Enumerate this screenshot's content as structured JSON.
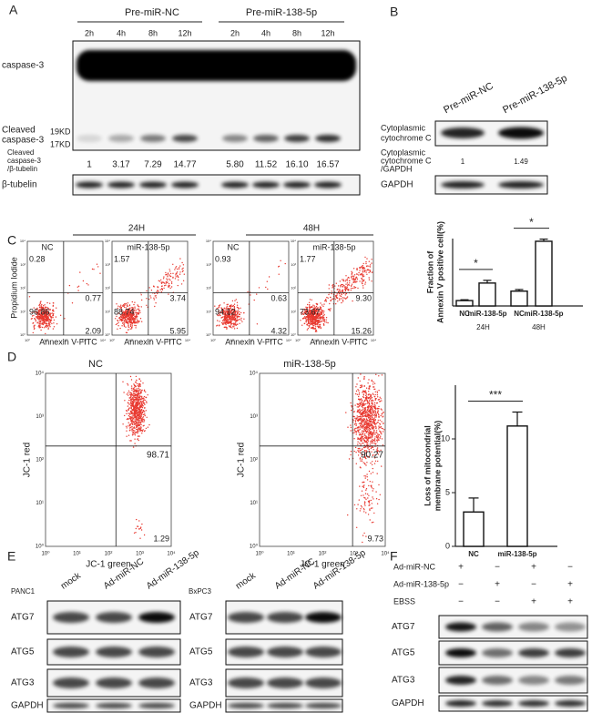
{
  "panel_a": {
    "label": "A",
    "groups": [
      "Pre-miR-NC",
      "Pre-miR-138-5p"
    ],
    "lanes": [
      "2h",
      "4h",
      "8h",
      "12h",
      "2h",
      "4h",
      "8h",
      "12h"
    ],
    "full_label": "caspase-3",
    "cleaved_label": [
      "Cleaved",
      "caspase-3"
    ],
    "markers": [
      "19KD",
      "17KD"
    ],
    "ratio_label": [
      "Cleaved",
      "caspase-3",
      "/β-tubelin"
    ],
    "ratios": [
      "1",
      "3.17",
      "7.29",
      "14.77",
      "5.80",
      "11.52",
      "16.10",
      "16.57"
    ],
    "loading": "β-tubelin"
  },
  "panel_b": {
    "label": "B",
    "lanes": [
      "Pre-miR-NC",
      "Pre-miR-138-5p"
    ],
    "row_label": [
      "Cytoplasmic",
      "cytochrome C"
    ],
    "ratio_label": [
      "Cytoplasmic",
      "cytochrome C",
      "/GAPDH"
    ],
    "ratios": [
      "1",
      "1.49"
    ],
    "loading": "GAPDH"
  },
  "log_ticks": [
    "10⁰",
    "10¹",
    "10²",
    "10³",
    "10⁴"
  ],
  "panel_c": {
    "label": "C",
    "timepoints": [
      "24H",
      "48H"
    ],
    "y_label": "Propidium Iodide",
    "x_label": "Annexin V-FITC",
    "plots": [
      {
        "title": "NC",
        "quadrants": [
          "0.28",
          "0.77",
          "96.86",
          "2.09"
        ]
      },
      {
        "title": "miR-138-5p",
        "quadrants": [
          "1.57",
          "3.74",
          "88.74",
          "5.95"
        ]
      },
      {
        "title": "NC",
        "quadrants": [
          "0.93",
          "0.63",
          "94.12",
          "4.32"
        ]
      },
      {
        "title": "miR-138-5p",
        "quadrants": [
          "1.77",
          "9.30",
          "73.67",
          "15.26"
        ]
      }
    ]
  },
  "panel_d": {
    "label": "D",
    "y_label": "JC-1 red",
    "x_label": "JC-1 green",
    "plots": [
      {
        "title": "NC",
        "quadrants": [
          "98.71",
          "1.29"
        ]
      },
      {
        "title": "miR-138-5p",
        "quadrants": [
          "90.27",
          "9.73"
        ]
      }
    ]
  },
  "panel_e": {
    "label": "E",
    "cells": [
      "PANC1",
      "BxPC3"
    ],
    "lanes": [
      "mock",
      "Ad-miR-NC",
      "Ad-miR-138-5p"
    ],
    "rows": [
      "ATG7",
      "ATG5",
      "ATG3",
      "GAPDH"
    ]
  },
  "panel_f": {
    "label": "F",
    "conditions": [
      {
        "name": "Ad-miR-NC",
        "signs": [
          "+",
          "−",
          "+",
          "−"
        ]
      },
      {
        "name": "Ad-miR-138-5p",
        "signs": [
          "−",
          "+",
          "−",
          "+"
        ]
      },
      {
        "name": "EBSS",
        "signs": [
          "−",
          "−",
          "+",
          "+"
        ]
      }
    ],
    "rows": [
      "ATG7",
      "ATG5",
      "ATG3",
      "GAPDH"
    ]
  },
  "chart_data": [
    {
      "type": "bar",
      "y_label": [
        "Fraction of",
        "Annexin V positive cell(%)"
      ],
      "categories": [
        "NC",
        "miR-138-5p",
        "NC",
        "miR-138-5p"
      ],
      "groups": [
        "24H",
        "48H"
      ],
      "values": [
        2,
        8.5,
        5.5,
        24
      ],
      "errors": [
        0.3,
        1,
        0.6,
        0.8
      ],
      "ylim": [
        0,
        25
      ],
      "significance": [
        "*",
        "*"
      ],
      "color": "#ffffff"
    },
    {
      "type": "bar",
      "y_label": [
        "Loss of mitocondrial",
        "membrane potential(%)"
      ],
      "categories": [
        "NC",
        "miR-138-5p"
      ],
      "values": [
        3.2,
        11.2
      ],
      "errors": [
        1.3,
        1.3
      ],
      "ylim": [
        0,
        15
      ],
      "yticks": [
        0,
        5,
        10
      ],
      "significance": [
        "***"
      ],
      "color": "#ffffff"
    }
  ]
}
